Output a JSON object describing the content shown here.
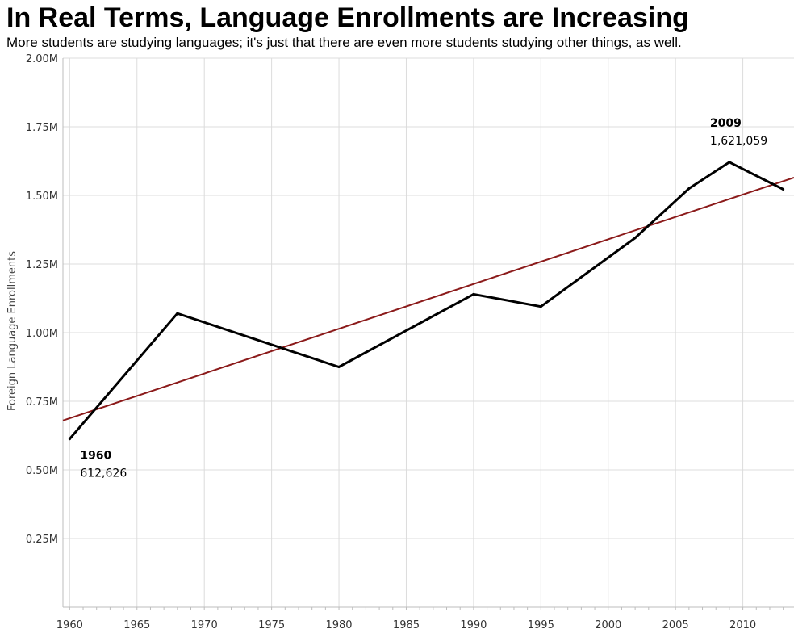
{
  "chart_data": {
    "type": "line",
    "title": "In Real Terms, Language Enrollments are Increasing",
    "subtitle": "More students are studying languages; it's just that there are even more students studying other things, as well.",
    "xlabel": "",
    "ylabel": "Foreign Language Enrollments",
    "xlim": [
      1959.5,
      2013.8
    ],
    "ylim": [
      0,
      2000000
    ],
    "x_ticks": [
      1960,
      1965,
      1970,
      1975,
      1980,
      1985,
      1990,
      1995,
      2000,
      2005,
      2010
    ],
    "y_ticks": [
      {
        "value": 250000,
        "label": "0.25M"
      },
      {
        "value": 500000,
        "label": "0.50M"
      },
      {
        "value": 750000,
        "label": "0.75M"
      },
      {
        "value": 1000000,
        "label": "1.00M"
      },
      {
        "value": 1250000,
        "label": "1.25M"
      },
      {
        "value": 1500000,
        "label": "1.50M"
      },
      {
        "value": 1750000,
        "label": "1.75M"
      },
      {
        "value": 2000000,
        "label": "2.00M"
      }
    ],
    "grid": true,
    "series": [
      {
        "color": "#000000",
        "x": [
          1960,
          1968,
          1980,
          1990,
          1995,
          2002,
          2006,
          2009,
          2013
        ],
        "y": [
          612626,
          1070000,
          875000,
          1140000,
          1095000,
          1345000,
          1525000,
          1621059,
          1522000
        ]
      }
    ],
    "trend_line": {
      "color": "#8b1a1a",
      "x": [
        1959.5,
        2013.8
      ],
      "y": [
        680000,
        1565000
      ]
    },
    "annotations": [
      {
        "x": 1960,
        "y": 612626,
        "year": "1960",
        "value": "612,626",
        "position": "below-right"
      },
      {
        "x": 2009,
        "y": 1621059,
        "year": "2009",
        "value": "1,621,059",
        "position": "above-left"
      }
    ]
  }
}
